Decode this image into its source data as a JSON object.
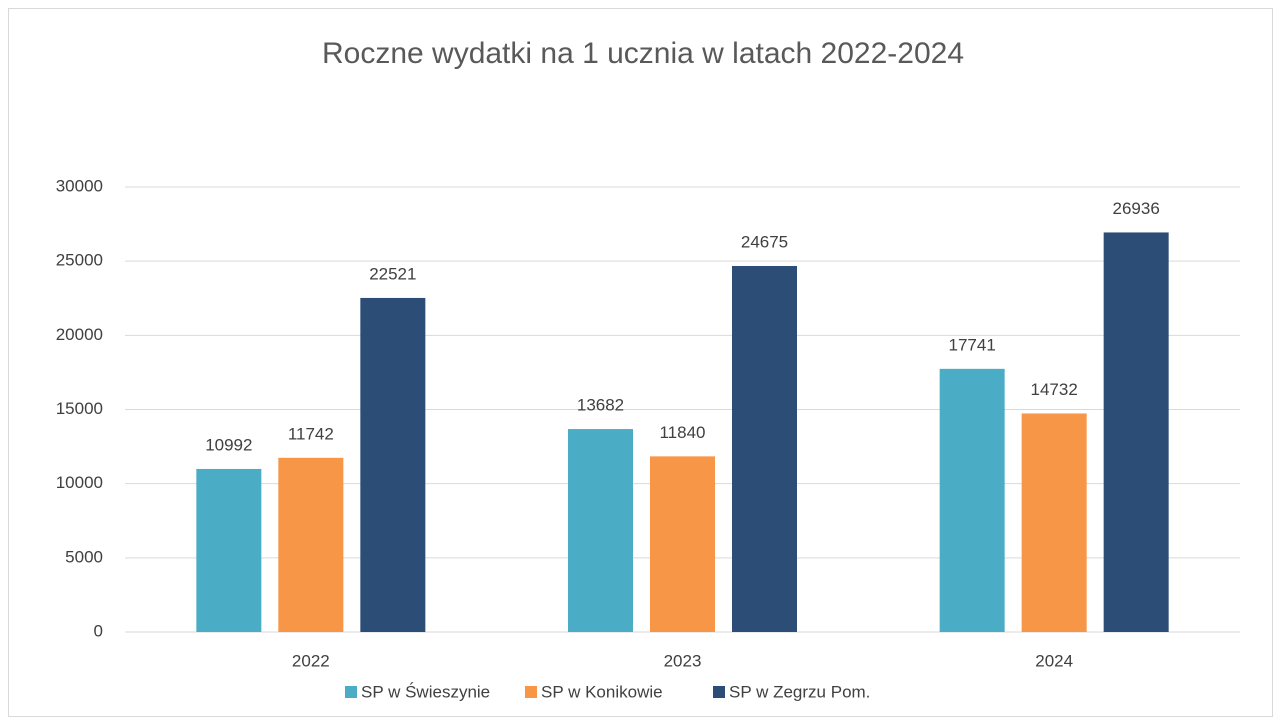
{
  "chart_data": {
    "type": "bar",
    "title": "Roczne wydatki na 1 ucznia w latach 2022-2024",
    "categories": [
      "2022",
      "2023",
      "2024"
    ],
    "series": [
      {
        "name": "SP w Świeszynie",
        "color": "#4bacc6",
        "values": [
          10992,
          13682,
          17741
        ]
      },
      {
        "name": "SP w Konikowie",
        "color": "#f79646",
        "values": [
          11742,
          11840,
          14732
        ]
      },
      {
        "name": "SP w Zegrzu Pom.",
        "color": "#2c4d75",
        "values": [
          22521,
          24675,
          26936
        ]
      }
    ],
    "ylim": [
      0,
      30000
    ],
    "yticks": [
      0,
      5000,
      10000,
      15000,
      20000,
      25000,
      30000
    ],
    "grid": true,
    "legend": "bottom"
  }
}
